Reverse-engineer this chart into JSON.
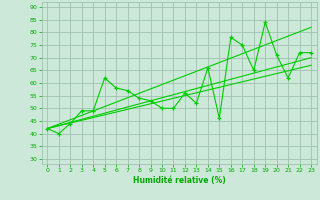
{
  "x": [
    0,
    1,
    2,
    3,
    4,
    5,
    6,
    7,
    8,
    9,
    10,
    11,
    12,
    13,
    14,
    15,
    16,
    17,
    18,
    19,
    20,
    21,
    22,
    23
  ],
  "line1": [
    42,
    40,
    44,
    49,
    49,
    62,
    58,
    57,
    54,
    53,
    50,
    50,
    56,
    52,
    66,
    46,
    78,
    75,
    65,
    84,
    71,
    62,
    72,
    72
  ],
  "ylim": [
    28,
    92
  ],
  "yticks": [
    30,
    35,
    40,
    45,
    50,
    55,
    60,
    65,
    70,
    75,
    80,
    85,
    90
  ],
  "xticks": [
    0,
    1,
    2,
    3,
    4,
    5,
    6,
    7,
    8,
    9,
    10,
    11,
    12,
    13,
    14,
    15,
    16,
    17,
    18,
    19,
    20,
    21,
    22,
    23
  ],
  "xlabel": "Humidité relative (%)",
  "line_color": "#00cc00",
  "bg_color": "#cce8d8",
  "grid_color": "#99bba8",
  "tick_color": "#00aa00"
}
